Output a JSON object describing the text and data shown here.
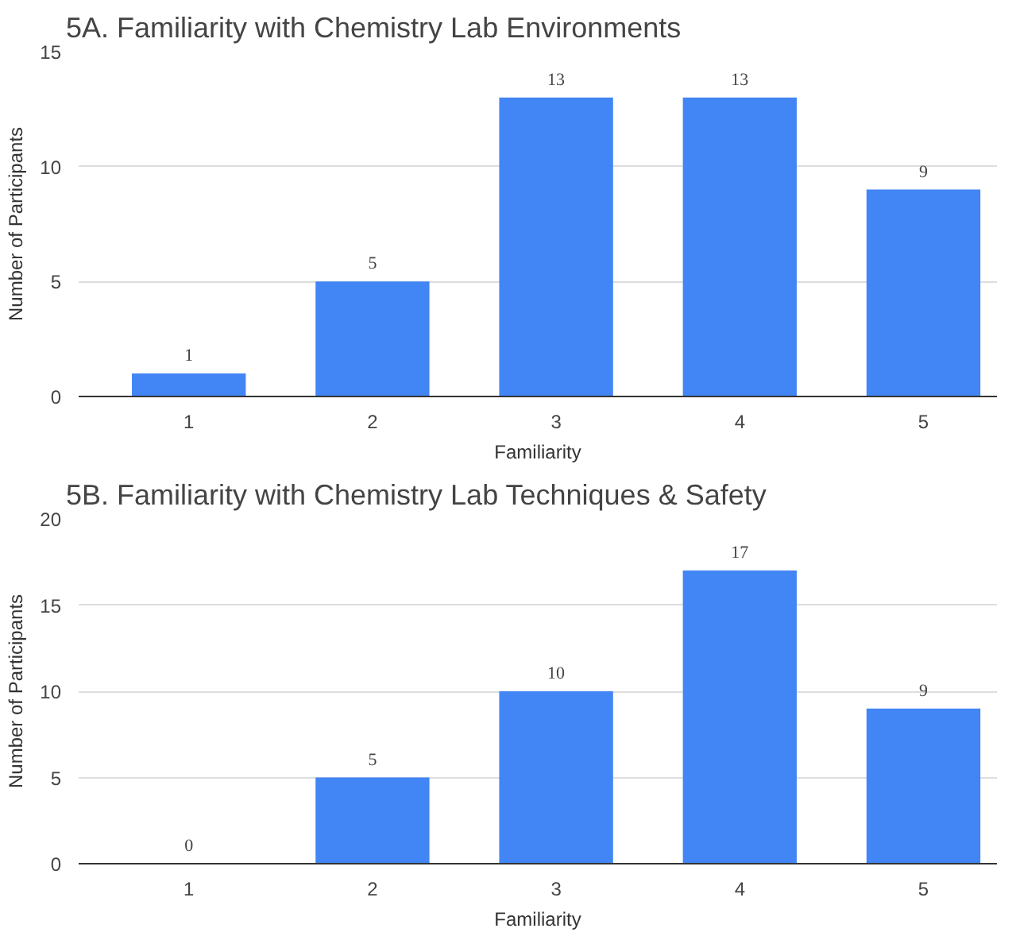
{
  "chart_data": [
    {
      "type": "bar",
      "title": "5A. Familiarity with Chemistry Lab Environments",
      "xlabel": "Familiarity",
      "ylabel": "Number of Participants",
      "categories": [
        "1",
        "2",
        "3",
        "4",
        "5"
      ],
      "values": [
        1,
        5,
        13,
        13,
        9
      ],
      "color": "#4285f4",
      "ylim": [
        0,
        15
      ],
      "yticks": [
        0,
        5,
        10,
        15
      ],
      "grid": "y",
      "data_labels": true
    },
    {
      "type": "bar",
      "title": "5B. Familiarity with Chemistry Lab Techniques & Safety",
      "xlabel": "Familiarity",
      "ylabel": "Number of Participants",
      "categories": [
        "1",
        "2",
        "3",
        "4",
        "5"
      ],
      "values": [
        0,
        5,
        10,
        17,
        9
      ],
      "color": "#4285f4",
      "ylim": [
        0,
        20
      ],
      "yticks": [
        0,
        5,
        10,
        15,
        20
      ],
      "grid": "y",
      "data_labels": true
    }
  ]
}
